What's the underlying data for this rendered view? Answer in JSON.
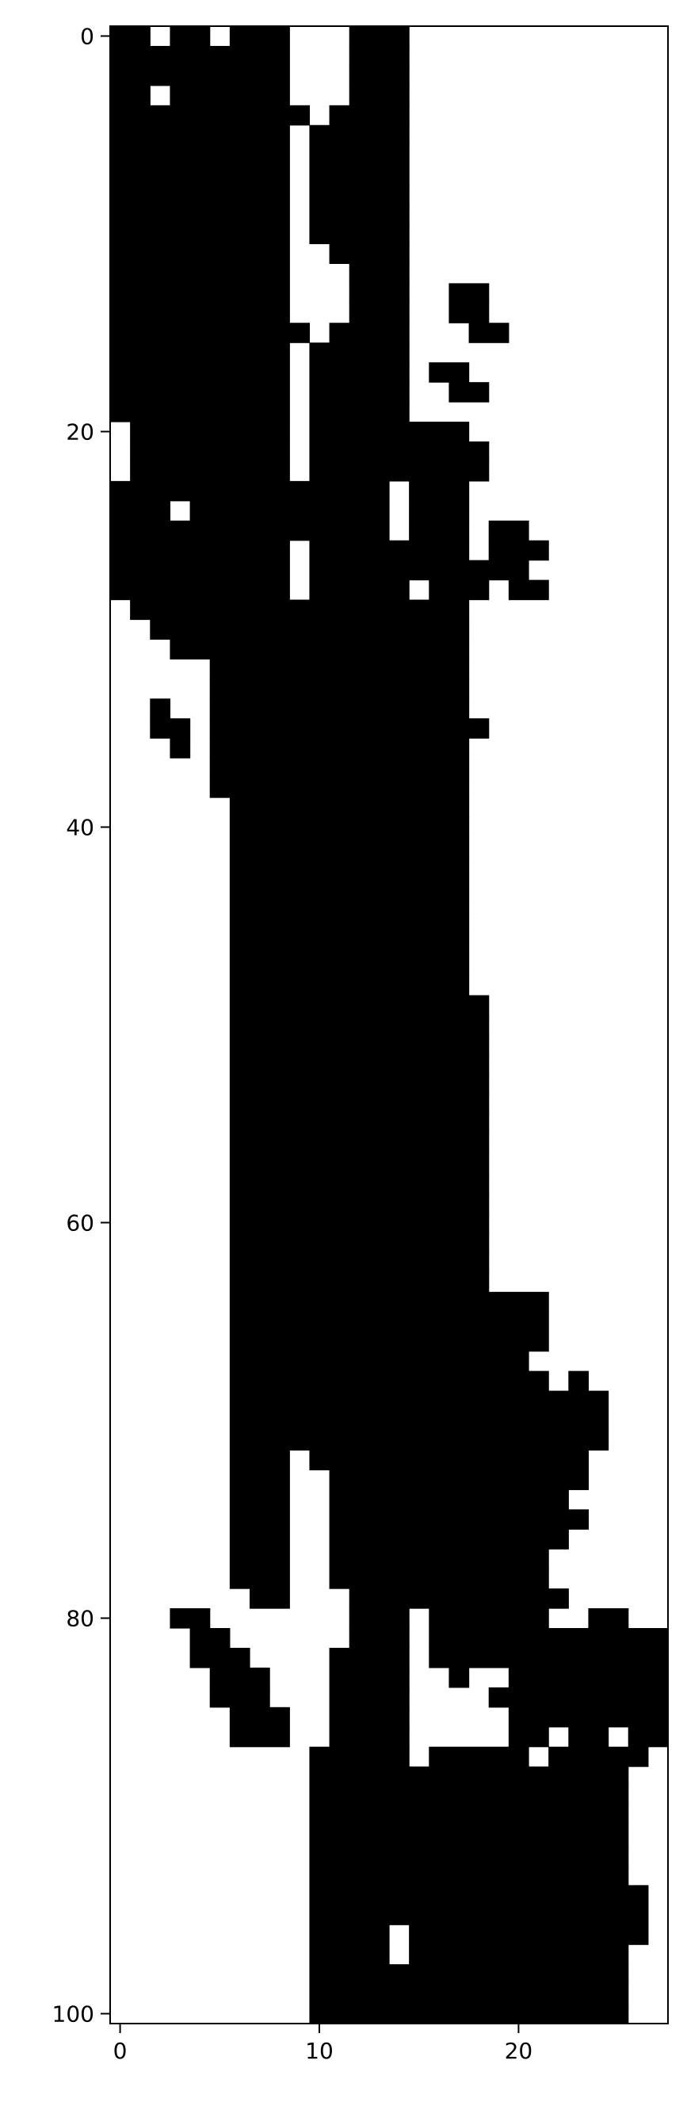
{
  "chart_data": {
    "type": "heatmap",
    "title": "",
    "xlabel": "",
    "ylabel": "",
    "colormap": "binary",
    "colors": {
      "on": "#000000",
      "off": "#ffffff"
    },
    "grid": false,
    "legend": "none",
    "x_ticks": [
      0,
      10,
      20
    ],
    "x_tick_labels": [
      "0",
      "10",
      "20"
    ],
    "y_ticks": [
      0,
      20,
      40,
      60,
      80,
      100
    ],
    "y_tick_labels": [
      "0",
      "20",
      "40",
      "60",
      "80",
      "100"
    ],
    "xlim": [
      -0.5,
      27.5
    ],
    "ylim": [
      100.5,
      -0.5
    ],
    "n_cols": 28,
    "n_rows": 101,
    "black_runs_by_row": [
      [
        [
          0,
          1
        ],
        [
          3,
          4
        ],
        [
          6,
          8
        ],
        [
          12,
          14
        ]
      ],
      [
        [
          0,
          8
        ],
        [
          12,
          14
        ]
      ],
      [
        [
          0,
          8
        ],
        [
          12,
          14
        ]
      ],
      [
        [
          0,
          1
        ],
        [
          3,
          8
        ],
        [
          12,
          14
        ]
      ],
      [
        [
          0,
          9
        ],
        [
          11,
          14
        ]
      ],
      [
        [
          0,
          8
        ],
        [
          10,
          14
        ]
      ],
      [
        [
          0,
          8
        ],
        [
          10,
          14
        ]
      ],
      [
        [
          0,
          8
        ],
        [
          10,
          14
        ]
      ],
      [
        [
          0,
          8
        ],
        [
          10,
          14
        ]
      ],
      [
        [
          0,
          8
        ],
        [
          10,
          14
        ]
      ],
      [
        [
          0,
          8
        ],
        [
          10,
          14
        ]
      ],
      [
        [
          0,
          8
        ],
        [
          11,
          14
        ]
      ],
      [
        [
          0,
          8
        ],
        [
          12,
          14
        ]
      ],
      [
        [
          0,
          8
        ],
        [
          12,
          14
        ],
        [
          17,
          18
        ]
      ],
      [
        [
          0,
          8
        ],
        [
          12,
          14
        ],
        [
          17,
          18
        ]
      ],
      [
        [
          0,
          9
        ],
        [
          11,
          14
        ],
        [
          18,
          19
        ]
      ],
      [
        [
          0,
          8
        ],
        [
          10,
          14
        ]
      ],
      [
        [
          0,
          8
        ],
        [
          10,
          14
        ],
        [
          16,
          17
        ]
      ],
      [
        [
          0,
          8
        ],
        [
          10,
          14
        ],
        [
          17,
          18
        ]
      ],
      [
        [
          0,
          8
        ],
        [
          10,
          14
        ]
      ],
      [
        [
          1,
          8
        ],
        [
          10,
          17
        ]
      ],
      [
        [
          1,
          8
        ],
        [
          10,
          18
        ]
      ],
      [
        [
          1,
          8
        ],
        [
          10,
          18
        ]
      ],
      [
        [
          0,
          13
        ],
        [
          15,
          17
        ]
      ],
      [
        [
          0,
          2
        ],
        [
          4,
          13
        ],
        [
          15,
          17
        ]
      ],
      [
        [
          0,
          13
        ],
        [
          15,
          17
        ],
        [
          19,
          20
        ]
      ],
      [
        [
          0,
          8
        ],
        [
          10,
          14
        ],
        [
          15,
          17
        ],
        [
          19,
          21
        ]
      ],
      [
        [
          0,
          8
        ],
        [
          10,
          14
        ],
        [
          15,
          20
        ]
      ],
      [
        [
          0,
          8
        ],
        [
          10,
          14
        ],
        [
          16,
          18
        ],
        [
          20,
          21
        ]
      ],
      [
        [
          1,
          17
        ]
      ],
      [
        [
          2,
          17
        ]
      ],
      [
        [
          3,
          17
        ]
      ],
      [
        [
          5,
          17
        ]
      ],
      [
        [
          5,
          17
        ]
      ],
      [
        [
          2,
          2
        ],
        [
          5,
          17
        ]
      ],
      [
        [
          2,
          3
        ],
        [
          5,
          18
        ]
      ],
      [
        [
          3,
          3
        ],
        [
          5,
          17
        ]
      ],
      [
        [
          5,
          17
        ]
      ],
      [
        [
          5,
          17
        ]
      ],
      [
        [
          6,
          17
        ]
      ],
      [
        [
          6,
          17
        ]
      ],
      [
        [
          6,
          17
        ]
      ],
      [
        [
          6,
          17
        ]
      ],
      [
        [
          6,
          17
        ]
      ],
      [
        [
          6,
          17
        ]
      ],
      [
        [
          6,
          17
        ]
      ],
      [
        [
          6,
          17
        ]
      ],
      [
        [
          6,
          17
        ]
      ],
      [
        [
          6,
          17
        ]
      ],
      [
        [
          6,
          18
        ]
      ],
      [
        [
          6,
          18
        ]
      ],
      [
        [
          6,
          18
        ]
      ],
      [
        [
          6,
          18
        ]
      ],
      [
        [
          6,
          18
        ]
      ],
      [
        [
          6,
          18
        ]
      ],
      [
        [
          6,
          18
        ]
      ],
      [
        [
          6,
          18
        ]
      ],
      [
        [
          6,
          18
        ]
      ],
      [
        [
          6,
          18
        ]
      ],
      [
        [
          6,
          18
        ]
      ],
      [
        [
          6,
          18
        ]
      ],
      [
        [
          6,
          18
        ]
      ],
      [
        [
          6,
          18
        ]
      ],
      [
        [
          6,
          18
        ]
      ],
      [
        [
          6,
          21
        ]
      ],
      [
        [
          6,
          21
        ]
      ],
      [
        [
          6,
          21
        ]
      ],
      [
        [
          6,
          20
        ]
      ],
      [
        [
          6,
          21
        ],
        [
          23,
          23
        ]
      ],
      [
        [
          6,
          24
        ]
      ],
      [
        [
          6,
          24
        ]
      ],
      [
        [
          6,
          24
        ]
      ],
      [
        [
          6,
          8
        ],
        [
          10,
          23
        ]
      ],
      [
        [
          6,
          8
        ],
        [
          11,
          23
        ]
      ],
      [
        [
          6,
          8
        ],
        [
          11,
          22
        ]
      ],
      [
        [
          6,
          8
        ],
        [
          11,
          23
        ]
      ],
      [
        [
          6,
          8
        ],
        [
          11,
          22
        ]
      ],
      [
        [
          6,
          8
        ],
        [
          11,
          21
        ]
      ],
      [
        [
          6,
          8
        ],
        [
          11,
          21
        ]
      ],
      [
        [
          7,
          8
        ],
        [
          12,
          22
        ]
      ],
      [
        [
          3,
          4
        ],
        [
          12,
          14
        ],
        [
          16,
          21
        ],
        [
          24,
          25
        ]
      ],
      [
        [
          4,
          5
        ],
        [
          12,
          14
        ],
        [
          16,
          27
        ]
      ],
      [
        [
          4,
          6
        ],
        [
          11,
          14
        ],
        [
          16,
          27
        ]
      ],
      [
        [
          5,
          7
        ],
        [
          11,
          14
        ],
        [
          17,
          17
        ],
        [
          20,
          27
        ]
      ],
      [
        [
          5,
          7
        ],
        [
          11,
          14
        ],
        [
          19,
          27
        ]
      ],
      [
        [
          6,
          8
        ],
        [
          11,
          14
        ],
        [
          20,
          27
        ]
      ],
      [
        [
          6,
          8
        ],
        [
          11,
          14
        ],
        [
          20,
          21
        ],
        [
          23,
          24
        ],
        [
          26,
          27
        ]
      ],
      [
        [
          10,
          14
        ],
        [
          16,
          20
        ],
        [
          22,
          26
        ]
      ],
      [
        [
          10,
          25
        ]
      ],
      [
        [
          10,
          25
        ]
      ],
      [
        [
          10,
          25
        ]
      ],
      [
        [
          10,
          25
        ]
      ],
      [
        [
          10,
          25
        ]
      ],
      [
        [
          10,
          25
        ]
      ],
      [
        [
          10,
          26
        ]
      ],
      [
        [
          10,
          26
        ]
      ],
      [
        [
          10,
          13
        ],
        [
          15,
          26
        ]
      ],
      [
        [
          10,
          13
        ],
        [
          15,
          25
        ]
      ],
      [
        [
          10,
          25
        ]
      ],
      [
        [
          10,
          25
        ]
      ],
      [
        [
          10,
          25
        ]
      ]
    ]
  }
}
